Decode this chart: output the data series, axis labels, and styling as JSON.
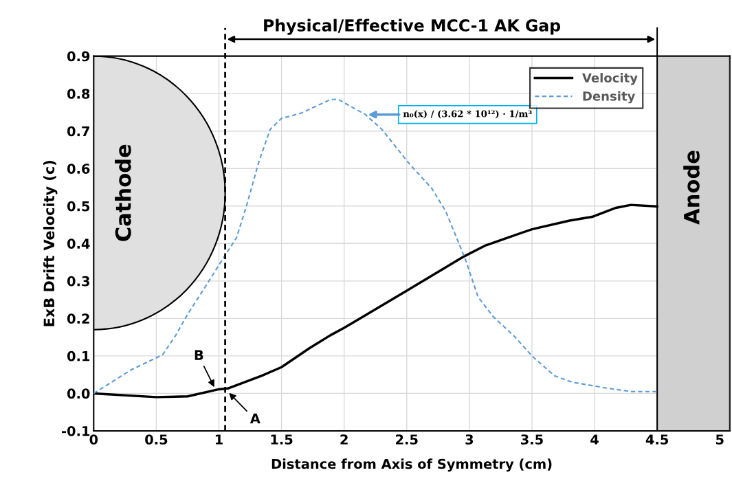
{
  "chart_data": {
    "type": "line",
    "title": "Physical/Effective MCC-1 AK Gap",
    "xlabel": "Distance from Axis of Symmetry (cm)",
    "ylabel": "ExB Drift Velocity (c)",
    "xlim": [
      0,
      5.08
    ],
    "xticks": [
      0,
      0.5,
      1,
      1.5,
      2,
      2.5,
      3,
      3.5,
      4,
      4.5,
      5
    ],
    "ylim": [
      -0.1,
      0.9
    ],
    "yticks": [
      {
        "value": -0.1,
        "label": "-0.1"
      },
      {
        "value": 0,
        "label": "0.0"
      },
      0.1,
      0.2,
      0.3,
      0.4,
      0.5,
      0.6,
      0.7,
      0.8,
      0.9
    ],
    "grid": true,
    "legend": "top right",
    "series": [
      {
        "name": "Velocity",
        "color": "#000000",
        "line_style": "solid",
        "x": [
          0,
          0.5,
          0.75,
          1.0,
          1.07,
          1.34,
          1.5,
          1.72,
          1.89,
          2.0,
          2.5,
          2.96,
          3.13,
          3.31,
          3.5,
          3.8,
          3.98,
          4.17,
          4.29,
          4.5
        ],
        "values": [
          0.0,
          -0.01,
          -0.008,
          0.011,
          0.013,
          0.047,
          0.07,
          0.12,
          0.155,
          0.175,
          0.274,
          0.366,
          0.395,
          0.416,
          0.438,
          0.461,
          0.471,
          0.495,
          0.503,
          0.499
        ]
      },
      {
        "name": "Density",
        "color": "#5b9bd5",
        "line_style": "dashed",
        "x": [
          0,
          0.3,
          0.55,
          0.65,
          0.75,
          0.89,
          1.05,
          1.14,
          1.22,
          1.32,
          1.41,
          1.5,
          1.65,
          1.89,
          1.95,
          2.17,
          2.3,
          2.52,
          2.7,
          2.81,
          2.89,
          2.97,
          3.07,
          3.19,
          3.36,
          3.5,
          3.68,
          3.82,
          4.1,
          4.29,
          4.5
        ],
        "values": [
          0.0,
          0.063,
          0.103,
          0.152,
          0.211,
          0.284,
          0.369,
          0.415,
          0.5,
          0.619,
          0.705,
          0.734,
          0.747,
          0.784,
          0.785,
          0.744,
          0.705,
          0.613,
          0.547,
          0.487,
          0.422,
          0.356,
          0.257,
          0.205,
          0.152,
          0.1,
          0.047,
          0.03,
          0.014,
          0.005,
          0.005
        ]
      }
    ],
    "ref_lines": [
      {
        "axis": "x",
        "value": 1.05,
        "color": "#000000",
        "line_style": "dashed"
      }
    ],
    "bands": [
      {
        "axis": "x",
        "from": 4.5,
        "to": 5.08,
        "label": "Anode",
        "color": "#d0d0d0"
      }
    ],
    "annotations": [
      "Cathode",
      {
        "text": "B",
        "x": 0.97,
        "y": 0.012
      },
      {
        "text": "A",
        "x": 1.07,
        "y": 0.005
      },
      "n₀(x) / (3.62 * 10¹²) · 1/m³"
    ]
  }
}
